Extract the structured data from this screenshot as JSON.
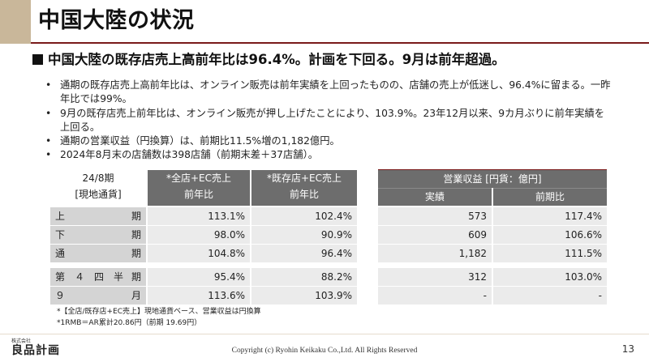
{
  "title": "中国大陸の状況",
  "headline": "中国大陸の既存店売上高前年比は96.4%。計画を下回る。9月は前年超過。",
  "bullets": [
    "通期の既存店売上高前年比は、オンライン販売は前年実績を上回ったものの、店舗の売上が低迷し、96.4%に留まる。一昨年比では99%。",
    "9月の既存店売上前年比は、オンライン販売が押し上げたことにより、103.9%。23年12月以来、9カ月ぶりに前年実績を上回る。",
    "通期の営業収益（円換算）は、前期比11.5%増の1,182億円。",
    "2024年8月末の店舗数は398店舗（前期末差＋37店舗）。"
  ],
  "left_table": {
    "corner": [
      "24/8期",
      "[現地通貨]"
    ],
    "col1": [
      "*全店+EC売上",
      "前年比"
    ],
    "col2": [
      "*既存店+EC売上",
      "前年比"
    ],
    "rows": [
      {
        "l": "上",
        "r": "期",
        "v1": "113.1%",
        "v2": "102.4%"
      },
      {
        "l": "下",
        "r": "期",
        "v1": "98.0%",
        "v2": "90.9%"
      },
      {
        "l": "通",
        "r": "期",
        "v1": "104.8%",
        "v2": "96.4%"
      },
      {
        "l": "第　４　四　半",
        "r": "期",
        "v1": "95.4%",
        "v2": "88.2%"
      },
      {
        "l": "９",
        "r": "月",
        "v1": "113.6%",
        "v2": "103.9%"
      }
    ]
  },
  "right_table": {
    "header": "営業収益 [円貨：億円]",
    "col1": "実績",
    "col2": "前期比",
    "rows": [
      {
        "v1": "573",
        "v2": "117.4%"
      },
      {
        "v1": "609",
        "v2": "106.6%"
      },
      {
        "v1": "1,182",
        "v2": "111.5%"
      },
      {
        "v1": "312",
        "v2": "103.0%"
      },
      {
        "v1": "-",
        "v2": "-"
      }
    ]
  },
  "notes": [
    "*【全店/既存店+EC売上】現地通貨ベース、営業収益は円換算",
    "*1RMB＝AR累計20.86円（前期 19.69円）"
  ],
  "logo": {
    "small": "株式会社",
    "main": "良品計画"
  },
  "copyright": "Copyright (c) Ryohin Keikaku Co.,Ltd. All Rights Reserved",
  "page_number": "13",
  "colors": {
    "accent_tan": "#c9b79a",
    "accent_dark_red": "#7a1a1a",
    "header_gray": "#6d6d6d",
    "label_gray": "#d4d4d4",
    "cell_gray": "#ebebeb"
  }
}
